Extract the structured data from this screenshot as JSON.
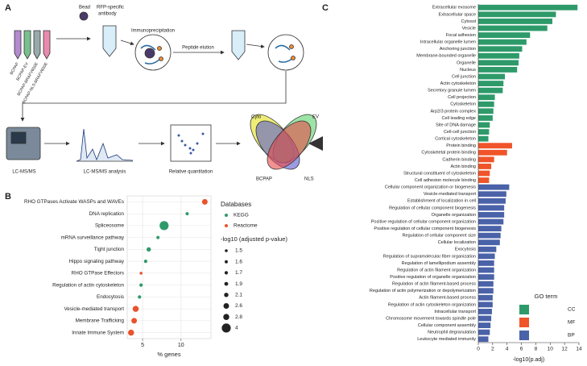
{
  "panel_labels": [
    "A",
    "B",
    "C"
  ],
  "workflow": {
    "bead": "Bead",
    "antibody_lines": [
      "RFP-specific",
      "antibody"
    ],
    "immunoprecipitation": "Immunoprecipitation",
    "peptide_elution": "Peptide elution",
    "lcms": "LC-MS/MS",
    "lcms_analysis": "LC-MS/MS analysis",
    "quantitation": "Relative quantitation",
    "samples": [
      "BCPAP",
      "BCPAP-EV",
      "BCPAP-BRAFV600E",
      "BCPAP-NLS-BRAFV600E"
    ],
    "venn_sets": [
      "Cyto",
      "EV",
      "BCPAP",
      "NLS"
    ]
  },
  "chart_data": [
    {
      "type": "scatter",
      "x_label": "% genes",
      "categories": [
        "RHO GTPases Activate WASPs and WAVEs",
        "DNA replication",
        "Spliceosome",
        "mRNA surveillance pathway",
        "Tight junction",
        "Hippo signaling pathway",
        "RHO GTPase Effectors",
        "Regulation of actin cytoskeleton",
        "Endocytosis",
        "Vesicle-mediated transport",
        "Membrane Trafficking",
        "Innate Immune System"
      ],
      "xlim": [
        3,
        13.9
      ],
      "xticks": [
        5,
        10
      ],
      "grid": true,
      "legend_title": "Databases",
      "series": [
        {
          "name": "KEGG",
          "color": "#2e9a6a",
          "values": [
            null,
            10.8,
            7.8,
            7.0,
            5.8,
            5.4,
            null,
            4.8,
            4.6,
            null,
            null,
            null
          ],
          "sizes": [
            null,
            1.6,
            4,
            1.6,
            2.1,
            1.7,
            null,
            1.7,
            1.7,
            null,
            null,
            null
          ]
        },
        {
          "name": "Reactome",
          "color": "#e8532c",
          "values": [
            13.1,
            null,
            null,
            null,
            null,
            null,
            4.8,
            null,
            null,
            4.1,
            3.9,
            3.5
          ],
          "sizes": [
            2.6,
            null,
            null,
            null,
            null,
            null,
            1.5,
            null,
            null,
            2.8,
            2.6,
            2.8
          ]
        }
      ],
      "size_legend": {
        "title": "-log10 (adjusted p-value)",
        "values": [
          1.5,
          1.6,
          1.7,
          1.9,
          2.1,
          2.6,
          2.8,
          4
        ]
      }
    },
    {
      "type": "bar",
      "orientation": "horizontal",
      "x_label": "-log10(p.adj)",
      "xlim": [
        0,
        14
      ],
      "xticks": [
        0,
        2,
        4,
        6,
        8,
        10,
        12,
        14
      ],
      "legend_title": "GO term",
      "categories": [
        "Extracellular exosome",
        "Extracellular space",
        "Cytosol",
        "Vesicle",
        "Focal adhesion",
        "Intracellular organelle lumen",
        "Anchoring junction",
        "Membrane-bounded organelle",
        "Organelle",
        "Nucleus",
        "Cell junction",
        "Actin cytoskeleton",
        "Secretory granule lumen",
        "Cell projection",
        "Cytoskeleton",
        "Arp2/3 protein complex",
        "Cell leading edge",
        "Site of DNA damage",
        "Cell-cell junction",
        "Cortical cytoskeleton",
        "Protein binding",
        "Cytoskeletal protein binding",
        "Cadherin binding",
        "Actin binding",
        "Structural constituent of cytoskeleton",
        "Cell adhesion molecule binding",
        "Cellular component organization or biogenesis",
        "Vesicle-mediated transport",
        "Establishment of localization in cell",
        "Regulation of cellular component biogenesis",
        "Organelle organization",
        "Positive regulation of cellular component organization",
        "Positive regulation of cellular component biogenesis",
        "Regulation of cellular component size",
        "Cellular localization",
        "Exocytosis",
        "Regulation of supramolecular fiber organization",
        "Regulation of lamellipodium assembly",
        "Regulation of actin filament organization",
        "Positive regulation of organelle organization",
        "Regulation of actin filament-based process",
        "Regulation of actin polymerization or depolymerization",
        "Actin filament-based process",
        "Regulation of actin cytoskeleton organization",
        "Intracellular transport",
        "Chromosome movement towards spindle pole",
        "Cellular component assembly",
        "Neutrophil degranulation",
        "Leukocyte mediated immunity"
      ],
      "series": [
        {
          "name": "CC",
          "color": "#2e9a6a",
          "values": [
            13.8,
            10.8,
            10.3,
            9.6,
            7.2,
            6.7,
            6.1,
            5.7,
            5.6,
            5.4,
            3.7,
            3.5,
            3.4,
            2.3,
            2.2,
            2.1,
            2.0,
            1.6,
            1.5,
            1.4,
            null,
            null,
            null,
            null,
            null,
            null,
            null,
            null,
            null,
            null,
            null,
            null,
            null,
            null,
            null,
            null,
            null,
            null,
            null,
            null,
            null,
            null,
            null,
            null,
            null,
            null,
            null,
            null,
            null
          ]
        },
        {
          "name": "MF",
          "color": "#f0542a",
          "values": [
            null,
            null,
            null,
            null,
            null,
            null,
            null,
            null,
            null,
            null,
            null,
            null,
            null,
            null,
            null,
            null,
            null,
            null,
            null,
            null,
            4.7,
            4.0,
            2.2,
            1.8,
            1.6,
            1.5,
            null,
            null,
            null,
            null,
            null,
            null,
            null,
            null,
            null,
            null,
            null,
            null,
            null,
            null,
            null,
            null,
            null,
            null,
            null,
            null,
            null,
            null,
            null
          ]
        },
        {
          "name": "BP",
          "color": "#4a62a8",
          "values": [
            null,
            null,
            null,
            null,
            null,
            null,
            null,
            null,
            null,
            null,
            null,
            null,
            null,
            null,
            null,
            null,
            null,
            null,
            null,
            null,
            null,
            null,
            null,
            null,
            null,
            null,
            4.3,
            3.9,
            3.8,
            3.6,
            3.6,
            3.5,
            3.2,
            3.1,
            3.0,
            2.5,
            2.3,
            2.2,
            2.2,
            2.2,
            2.1,
            2.1,
            2.0,
            2.0,
            1.9,
            1.8,
            1.7,
            1.6,
            1.4
          ]
        }
      ]
    }
  ]
}
